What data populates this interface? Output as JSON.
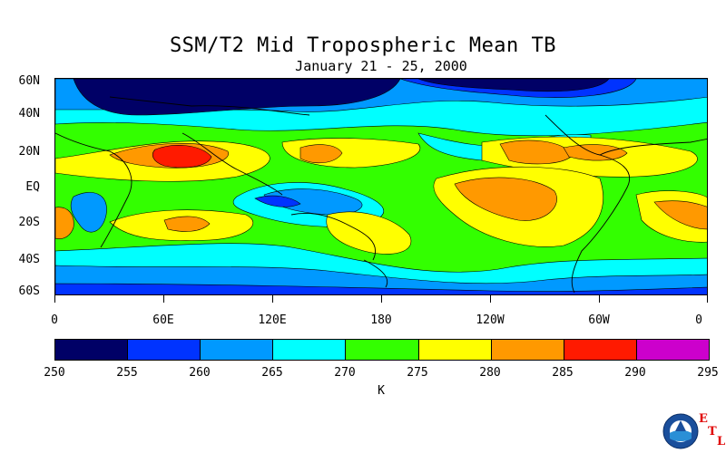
{
  "title": "SSM/T2 Mid Tropospheric Mean TB",
  "subtitle": "January 21 - 25, 2000",
  "latitude_labels": [
    "60N",
    "40N",
    "20N",
    "EQ",
    "20S",
    "40S",
    "60S"
  ],
  "longitude_labels": [
    "0",
    "60E",
    "120E",
    "180",
    "120W",
    "60W",
    "0"
  ],
  "colorbar": {
    "boundaries": [
      "250",
      "255",
      "260",
      "265",
      "270",
      "275",
      "280",
      "285",
      "290",
      "295"
    ],
    "colors": [
      "#000066",
      "#0033ff",
      "#0099ff",
      "#00ffff",
      "#33ff00",
      "#ffff00",
      "#ff9900",
      "#ff1a00",
      "#cc00cc"
    ],
    "units": "K"
  },
  "logo": {
    "name": "noaa-logo",
    "letters": [
      "E",
      "T",
      "L"
    ]
  }
}
